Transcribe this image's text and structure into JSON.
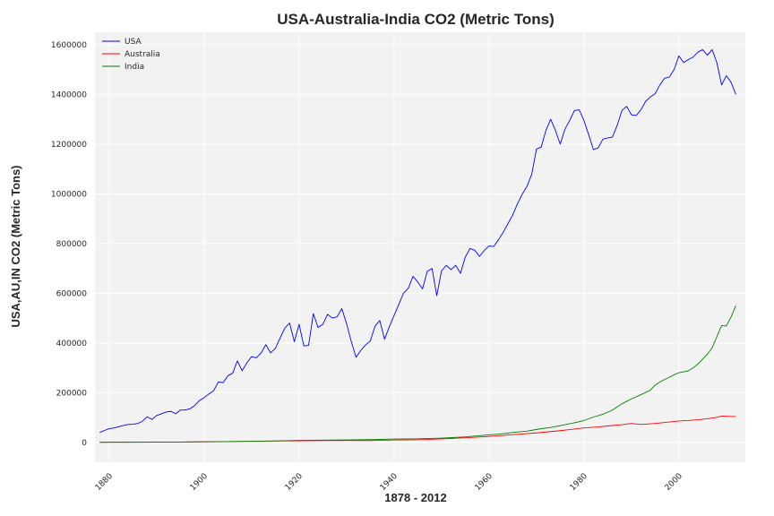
{
  "chart_data": {
    "type": "line",
    "title": "USA-Australia-India CO2 (Metric Tons)",
    "xlabel": "1878 - 2012",
    "ylabel": "USA,AU,IN CO2 (Metric Tons)",
    "xlim": [
      1877,
      2014
    ],
    "ylim": [
      -80000,
      1650000
    ],
    "x_ticks": [
      1880,
      1900,
      1920,
      1940,
      1960,
      1980,
      2000
    ],
    "y_ticks": [
      0,
      200000,
      400000,
      600000,
      800000,
      1000000,
      1200000,
      1400000,
      1600000
    ],
    "grid": true,
    "legend_position": "top-left",
    "series": [
      {
        "name": "USA",
        "color": "#0000ff",
        "points": [
          [
            1878,
            40000
          ],
          [
            1879,
            48000
          ],
          [
            1880,
            55000
          ],
          [
            1881,
            58000
          ],
          [
            1882,
            63000
          ],
          [
            1883,
            68000
          ],
          [
            1884,
            72000
          ],
          [
            1885,
            73000
          ],
          [
            1886,
            76000
          ],
          [
            1887,
            85000
          ],
          [
            1888,
            103000
          ],
          [
            1889,
            92000
          ],
          [
            1890,
            108000
          ],
          [
            1891,
            115000
          ],
          [
            1892,
            122000
          ],
          [
            1893,
            125000
          ],
          [
            1894,
            115000
          ],
          [
            1895,
            130000
          ],
          [
            1896,
            130000
          ],
          [
            1897,
            135000
          ],
          [
            1898,
            148000
          ],
          [
            1899,
            168000
          ],
          [
            1900,
            180000
          ],
          [
            1901,
            195000
          ],
          [
            1902,
            208000
          ],
          [
            1903,
            243000
          ],
          [
            1904,
            240000
          ],
          [
            1905,
            268000
          ],
          [
            1906,
            278000
          ],
          [
            1907,
            328000
          ],
          [
            1908,
            288000
          ],
          [
            1909,
            320000
          ],
          [
            1910,
            345000
          ],
          [
            1911,
            340000
          ],
          [
            1912,
            360000
          ],
          [
            1913,
            393000
          ],
          [
            1914,
            360000
          ],
          [
            1915,
            378000
          ],
          [
            1916,
            420000
          ],
          [
            1917,
            460000
          ],
          [
            1918,
            480000
          ],
          [
            1919,
            405000
          ],
          [
            1920,
            475000
          ],
          [
            1921,
            388000
          ],
          [
            1922,
            390000
          ],
          [
            1923,
            518000
          ],
          [
            1924,
            462000
          ],
          [
            1925,
            475000
          ],
          [
            1926,
            515000
          ],
          [
            1927,
            500000
          ],
          [
            1928,
            505000
          ],
          [
            1929,
            538000
          ],
          [
            1930,
            478000
          ],
          [
            1931,
            405000
          ],
          [
            1932,
            342000
          ],
          [
            1933,
            370000
          ],
          [
            1934,
            392000
          ],
          [
            1935,
            408000
          ],
          [
            1936,
            468000
          ],
          [
            1937,
            490000
          ],
          [
            1938,
            415000
          ],
          [
            1939,
            465000
          ],
          [
            1940,
            510000
          ],
          [
            1941,
            555000
          ],
          [
            1942,
            600000
          ],
          [
            1943,
            620000
          ],
          [
            1944,
            668000
          ],
          [
            1945,
            645000
          ],
          [
            1946,
            618000
          ],
          [
            1947,
            688000
          ],
          [
            1948,
            700000
          ],
          [
            1949,
            590000
          ],
          [
            1950,
            690000
          ],
          [
            1951,
            712000
          ],
          [
            1952,
            695000
          ],
          [
            1953,
            712000
          ],
          [
            1954,
            680000
          ],
          [
            1955,
            745000
          ],
          [
            1956,
            780000
          ],
          [
            1957,
            773000
          ],
          [
            1958,
            748000
          ],
          [
            1959,
            772000
          ],
          [
            1960,
            790000
          ],
          [
            1961,
            788000
          ],
          [
            1962,
            815000
          ],
          [
            1963,
            845000
          ],
          [
            1964,
            880000
          ],
          [
            1965,
            915000
          ],
          [
            1966,
            960000
          ],
          [
            1967,
            998000
          ],
          [
            1968,
            1030000
          ],
          [
            1969,
            1078000
          ],
          [
            1970,
            1180000
          ],
          [
            1971,
            1188000
          ],
          [
            1972,
            1255000
          ],
          [
            1973,
            1300000
          ],
          [
            1974,
            1255000
          ],
          [
            1975,
            1200000
          ],
          [
            1976,
            1260000
          ],
          [
            1977,
            1295000
          ],
          [
            1978,
            1335000
          ],
          [
            1979,
            1338000
          ],
          [
            1980,
            1295000
          ],
          [
            1981,
            1238000
          ],
          [
            1982,
            1178000
          ],
          [
            1983,
            1185000
          ],
          [
            1984,
            1220000
          ],
          [
            1985,
            1225000
          ],
          [
            1986,
            1228000
          ],
          [
            1987,
            1275000
          ],
          [
            1988,
            1335000
          ],
          [
            1989,
            1352000
          ],
          [
            1990,
            1318000
          ],
          [
            1991,
            1315000
          ],
          [
            1992,
            1338000
          ],
          [
            1993,
            1372000
          ],
          [
            1994,
            1390000
          ],
          [
            1995,
            1403000
          ],
          [
            1996,
            1438000
          ],
          [
            1997,
            1465000
          ],
          [
            1998,
            1470000
          ],
          [
            1999,
            1500000
          ],
          [
            2000,
            1555000
          ],
          [
            2001,
            1528000
          ],
          [
            2002,
            1540000
          ],
          [
            2003,
            1550000
          ],
          [
            2004,
            1570000
          ],
          [
            2005,
            1580000
          ],
          [
            2006,
            1558000
          ],
          [
            2007,
            1580000
          ],
          [
            2008,
            1528000
          ],
          [
            2009,
            1438000
          ],
          [
            2010,
            1475000
          ],
          [
            2011,
            1448000
          ],
          [
            2012,
            1400000
          ]
        ]
      },
      {
        "name": "Australia",
        "color": "#ff0000",
        "points": [
          [
            1878,
            500
          ],
          [
            1885,
            900
          ],
          [
            1890,
            1200
          ],
          [
            1895,
            1500
          ],
          [
            1900,
            2500
          ],
          [
            1905,
            3200
          ],
          [
            1910,
            4200
          ],
          [
            1915,
            5200
          ],
          [
            1920,
            6200
          ],
          [
            1925,
            7200
          ],
          [
            1930,
            7500
          ],
          [
            1935,
            7200
          ],
          [
            1940,
            9500
          ],
          [
            1945,
            10500
          ],
          [
            1950,
            14000
          ],
          [
            1955,
            18500
          ],
          [
            1960,
            24000
          ],
          [
            1965,
            31000
          ],
          [
            1970,
            38000
          ],
          [
            1975,
            47000
          ],
          [
            1980,
            58000
          ],
          [
            1983,
            62000
          ],
          [
            1985,
            66000
          ],
          [
            1988,
            71000
          ],
          [
            1990,
            76000
          ],
          [
            1992,
            72000
          ],
          [
            1995,
            76000
          ],
          [
            1998,
            82000
          ],
          [
            2000,
            86000
          ],
          [
            2002,
            88000
          ],
          [
            2004,
            91000
          ],
          [
            2006,
            95000
          ],
          [
            2008,
            101000
          ],
          [
            2009,
            106000
          ],
          [
            2010,
            105000
          ],
          [
            2011,
            104000
          ],
          [
            2012,
            104000
          ]
        ]
      },
      {
        "name": "India",
        "color": "#008000",
        "points": [
          [
            1878,
            200
          ],
          [
            1885,
            400
          ],
          [
            1890,
            700
          ],
          [
            1895,
            1200
          ],
          [
            1900,
            2000
          ],
          [
            1905,
            3000
          ],
          [
            1910,
            4500
          ],
          [
            1915,
            6000
          ],
          [
            1920,
            8000
          ],
          [
            1925,
            9000
          ],
          [
            1930,
            10000
          ],
          [
            1935,
            11000
          ],
          [
            1940,
            13500
          ],
          [
            1945,
            14500
          ],
          [
            1950,
            17000
          ],
          [
            1955,
            22000
          ],
          [
            1960,
            30000
          ],
          [
            1963,
            35000
          ],
          [
            1965,
            40000
          ],
          [
            1968,
            45000
          ],
          [
            1970,
            52000
          ],
          [
            1973,
            60000
          ],
          [
            1975,
            67000
          ],
          [
            1978,
            79000
          ],
          [
            1980,
            88000
          ],
          [
            1982,
            102000
          ],
          [
            1984,
            113000
          ],
          [
            1986,
            130000
          ],
          [
            1988,
            155000
          ],
          [
            1990,
            175000
          ],
          [
            1992,
            192000
          ],
          [
            1994,
            210000
          ],
          [
            1995,
            230000
          ],
          [
            1996,
            243000
          ],
          [
            1997,
            253000
          ],
          [
            1998,
            262000
          ],
          [
            1999,
            272000
          ],
          [
            2000,
            280000
          ],
          [
            2001,
            284000
          ],
          [
            2002,
            288000
          ],
          [
            2003,
            300000
          ],
          [
            2004,
            315000
          ],
          [
            2005,
            335000
          ],
          [
            2006,
            355000
          ],
          [
            2007,
            380000
          ],
          [
            2008,
            425000
          ],
          [
            2009,
            470000
          ],
          [
            2010,
            468000
          ],
          [
            2011,
            505000
          ],
          [
            2012,
            550000
          ]
        ]
      }
    ]
  }
}
